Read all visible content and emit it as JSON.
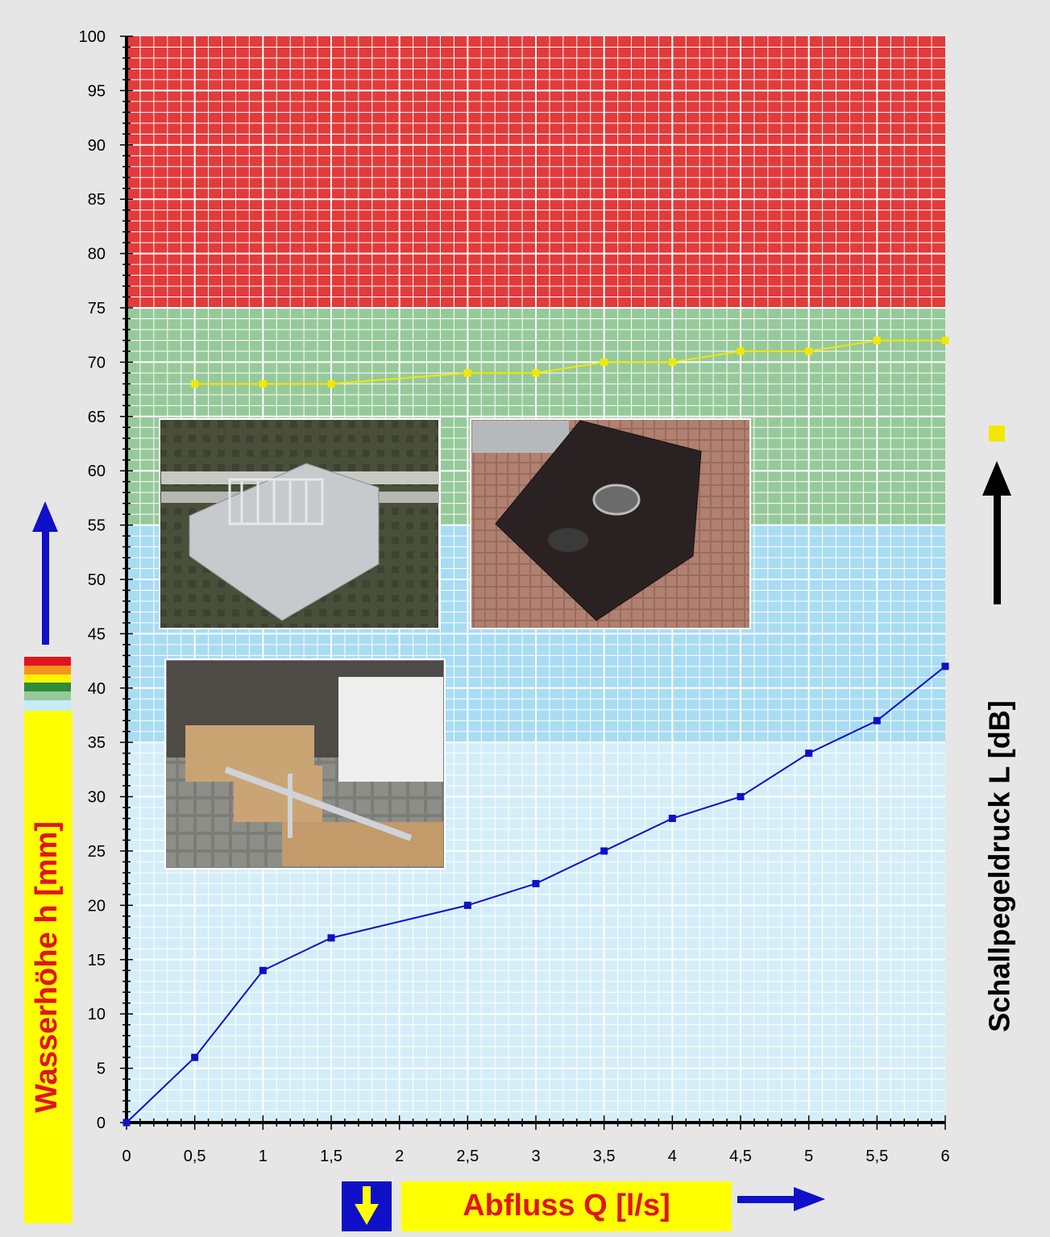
{
  "chart_data": {
    "type": "line",
    "title": "",
    "xlabel": "Abfluss Q [l/s]",
    "ylabel": "Wasserhöhe h [mm]",
    "y2label": "Schallpegeldruck L [dB]",
    "xlim": [
      0,
      6
    ],
    "ylim": [
      0,
      100
    ],
    "x_ticks": [
      "0",
      "0,5",
      "1",
      "1,5",
      "2",
      "2,5",
      "3",
      "3,5",
      "4",
      "4,5",
      "5",
      "5,5",
      "6"
    ],
    "y_ticks": [
      "0",
      "5",
      "10",
      "15",
      "20",
      "25",
      "30",
      "35",
      "40",
      "45",
      "50",
      "55",
      "60",
      "65",
      "70",
      "75",
      "80",
      "85",
      "90",
      "95",
      "100"
    ],
    "grid": true,
    "bands": [
      {
        "from": 0,
        "to": 35,
        "color": "#d4eef9"
      },
      {
        "from": 35,
        "to": 55,
        "color": "#a8dcf2"
      },
      {
        "from": 55,
        "to": 75,
        "color": "#96c99a"
      },
      {
        "from": 75,
        "to": 100,
        "color": "#e23b3b"
      }
    ],
    "series": [
      {
        "color": "#1010c8",
        "x": [
          0,
          0.5,
          1,
          1.5,
          2.5,
          3,
          3.5,
          4,
          4.5,
          5,
          5.5,
          6
        ],
        "values": [
          0,
          6,
          14,
          17,
          20,
          22,
          25,
          28,
          30,
          34,
          37,
          42
        ]
      },
      {
        "color": "#f2e800",
        "x": [
          0.5,
          1,
          1.5,
          2.5,
          3,
          3.5,
          4,
          4.5,
          5,
          5.5,
          6
        ],
        "values": [
          68,
          68,
          68,
          69,
          69,
          70,
          70,
          71,
          71,
          72,
          72
        ]
      }
    ]
  },
  "colors": {
    "background": "#e6e6e6",
    "title_highlight": "#ffff00",
    "ylabel_text": "#e0141e",
    "xlabel_text": "#e0141e",
    "arrow_blue": "#1010c8"
  },
  "icons": {
    "down_arrow_box": "down-arrow-icon",
    "legend_swatch": "color-stripes",
    "right_arrow": "right-arrow-icon",
    "up_arrow_black": "up-arrow-icon",
    "up_arrow_blue": "up-arrow-icon"
  }
}
